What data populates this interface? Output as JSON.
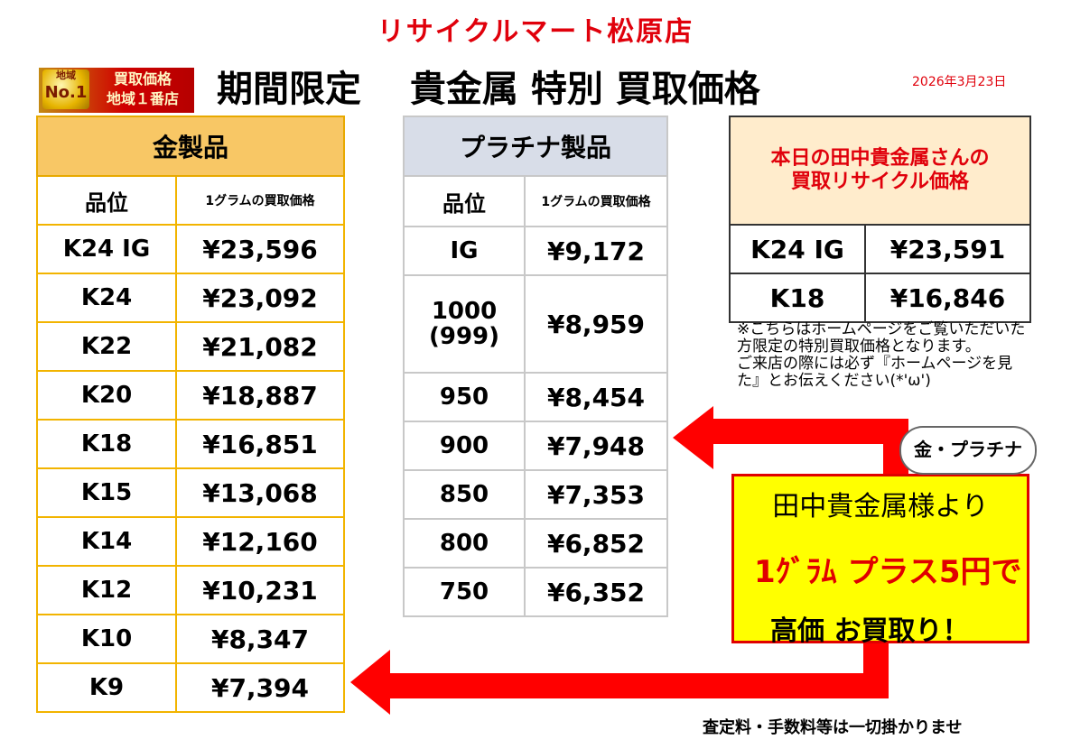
{
  "header": {
    "shop_name": "リサイクルマート松原店",
    "title": "期間限定　 貴金属 特別 買取価格",
    "date": "2026年3月23日",
    "badge": {
      "line1": "地域",
      "line2": "No.1",
      "text1": "買取価格",
      "text2": "地域１番店"
    }
  },
  "gold_table": {
    "title": "金製品",
    "col1": "品位",
    "col2": "1グラムの買取価格",
    "rows": [
      {
        "grade": "K24 IG",
        "price": "¥23,596"
      },
      {
        "grade": "K24",
        "price": "¥23,092"
      },
      {
        "grade": "K22",
        "price": "¥21,082"
      },
      {
        "grade": "K20",
        "price": "¥18,887"
      },
      {
        "grade": "K18",
        "price": "¥16,851"
      },
      {
        "grade": "K15",
        "price": "¥13,068"
      },
      {
        "grade": "K14",
        "price": "¥12,160"
      },
      {
        "grade": "K12",
        "price": "¥10,231"
      },
      {
        "grade": "K10",
        "price": "¥8,347"
      },
      {
        "grade": "K9",
        "price": "¥7,394"
      }
    ]
  },
  "platinum_table": {
    "title": "プラチナ製品",
    "col1": "品位",
    "col2": "1グラムの買取価格",
    "rows": [
      {
        "grade": "IG",
        "price": "¥9,172"
      },
      {
        "grade": "1000\n(999)",
        "price": "¥8,959"
      },
      {
        "grade": "950",
        "price": "¥8,454"
      },
      {
        "grade": "900",
        "price": "¥7,948"
      },
      {
        "grade": "850",
        "price": "¥7,353"
      },
      {
        "grade": "800",
        "price": "¥6,852"
      },
      {
        "grade": "750",
        "price": "¥6,352"
      }
    ]
  },
  "tanaka_table": {
    "title": "本日の田中貴金属さんの\n買取リサイクル価格",
    "rows": [
      {
        "grade": "K24 IG",
        "price": "¥23,591"
      },
      {
        "grade": "K18",
        "price": "¥16,846"
      }
    ]
  },
  "note": "※こちらはホームページをご覧いただいた方限定の特別買取価格となります。\nご来店の際には必ず『ホームページを見た』とお伝えください(*'ω')",
  "bubble": "金・プラチナ",
  "callout": {
    "line1": "田中貴金属様より",
    "line2": "1ｸﾞﾗﾑ プラス5円で",
    "line3": "高価 お買取り！"
  },
  "footer": "査定料・手数料等は一切掛かりませ",
  "colors": {
    "accent_red": "#e0000b",
    "gold_header": "#f8c765",
    "platinum_header": "#d8dde8",
    "callout_yellow": "#ffff00"
  }
}
